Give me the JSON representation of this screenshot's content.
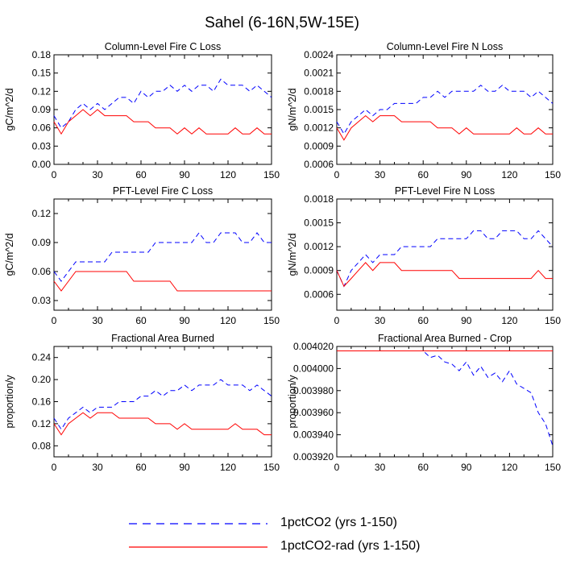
{
  "title": "Sahel (6-16N,5W-15E)",
  "legend": {
    "placement": "bottom",
    "entries": [
      {
        "label": "1pctCO2 (yrs 1-150)",
        "color": "#0000ff",
        "style": "dashed"
      },
      {
        "label": "1pctCO2-rad (yrs 1-150)",
        "color": "#ff0000",
        "style": "solid"
      }
    ]
  },
  "chart_data": [
    {
      "type": "line",
      "title": "Column-Level Fire C Loss",
      "ylabel": "gC/m^2/d",
      "xlim": [
        0,
        150
      ],
      "ylim": [
        0.0,
        0.18
      ],
      "xticks": [
        0,
        30,
        60,
        90,
        120,
        150
      ],
      "yticks": [
        "0.00",
        "0.03",
        "0.06",
        "0.09",
        "0.12",
        "0.15",
        "0.18"
      ],
      "x": {
        "start": 0,
        "step": 5,
        "count": 31
      },
      "series": [
        {
          "name": "1pctCO2 (yrs 1-150)",
          "color": "#0000ff",
          "style": "dashed",
          "values": [
            0.08,
            0.06,
            0.07,
            0.09,
            0.1,
            0.09,
            0.1,
            0.09,
            0.1,
            0.11,
            0.11,
            0.1,
            0.12,
            0.11,
            0.12,
            0.12,
            0.13,
            0.12,
            0.13,
            0.12,
            0.13,
            0.13,
            0.12,
            0.14,
            0.13,
            0.13,
            0.13,
            0.12,
            0.13,
            0.12,
            0.11
          ]
        },
        {
          "name": "1pctCO2-rad (yrs 1-150)",
          "color": "#ff0000",
          "style": "solid",
          "values": [
            0.07,
            0.05,
            0.07,
            0.08,
            0.09,
            0.08,
            0.09,
            0.08,
            0.08,
            0.08,
            0.08,
            0.07,
            0.07,
            0.07,
            0.06,
            0.06,
            0.06,
            0.05,
            0.06,
            0.05,
            0.06,
            0.05,
            0.05,
            0.05,
            0.05,
            0.06,
            0.05,
            0.05,
            0.06,
            0.05,
            0.05
          ]
        }
      ]
    },
    {
      "type": "line",
      "title": "Column-Level Fire N Loss",
      "ylabel": "gN/m^2/d",
      "xlim": [
        0,
        150
      ],
      "ylim": [
        0.0006,
        0.0024
      ],
      "xticks": [
        0,
        30,
        60,
        90,
        120,
        150
      ],
      "yticks": [
        "0.0006",
        "0.0009",
        "0.0012",
        "0.0015",
        "0.0018",
        "0.0021",
        "0.0024"
      ],
      "x": {
        "start": 0,
        "step": 5,
        "count": 31
      },
      "series": [
        {
          "name": "1pctCO2 (yrs 1-150)",
          "color": "#0000ff",
          "style": "dashed",
          "values": [
            0.0013,
            0.0011,
            0.0013,
            0.0014,
            0.0015,
            0.0014,
            0.0015,
            0.0015,
            0.0016,
            0.0016,
            0.0016,
            0.0016,
            0.0017,
            0.0017,
            0.0018,
            0.0017,
            0.0018,
            0.0018,
            0.0018,
            0.0018,
            0.0019,
            0.0018,
            0.0018,
            0.0019,
            0.0018,
            0.0018,
            0.0018,
            0.0017,
            0.0018,
            0.0017,
            0.0016
          ]
        },
        {
          "name": "1pctCO2-rad (yrs 1-150)",
          "color": "#ff0000",
          "style": "solid",
          "values": [
            0.0012,
            0.001,
            0.0012,
            0.0013,
            0.0014,
            0.0013,
            0.0014,
            0.0014,
            0.0014,
            0.0013,
            0.0013,
            0.0013,
            0.0013,
            0.0013,
            0.0012,
            0.0012,
            0.0012,
            0.0011,
            0.0012,
            0.0011,
            0.0011,
            0.0011,
            0.0011,
            0.0011,
            0.0011,
            0.0012,
            0.0011,
            0.0011,
            0.0012,
            0.0011,
            0.0011
          ]
        }
      ]
    },
    {
      "type": "line",
      "title": "PFT-Level Fire C Loss",
      "ylabel": "gC/m^2/d",
      "xlim": [
        0,
        150
      ],
      "ylim": [
        0.02,
        0.135
      ],
      "xticks": [
        0,
        30,
        60,
        90,
        120,
        150
      ],
      "yticks": [
        "0.03",
        "0.06",
        "0.09",
        "0.12"
      ],
      "x": {
        "start": 0,
        "step": 5,
        "count": 31
      },
      "series": [
        {
          "name": "1pctCO2 (yrs 1-150)",
          "color": "#0000ff",
          "style": "dashed",
          "values": [
            0.06,
            0.05,
            0.06,
            0.07,
            0.07,
            0.07,
            0.07,
            0.07,
            0.08,
            0.08,
            0.08,
            0.08,
            0.08,
            0.08,
            0.09,
            0.09,
            0.09,
            0.09,
            0.09,
            0.09,
            0.1,
            0.09,
            0.09,
            0.1,
            0.1,
            0.1,
            0.09,
            0.09,
            0.1,
            0.09,
            0.09
          ]
        },
        {
          "name": "1pctCO2-rad (yrs 1-150)",
          "color": "#ff0000",
          "style": "solid",
          "values": [
            0.05,
            0.04,
            0.05,
            0.06,
            0.06,
            0.06,
            0.06,
            0.06,
            0.06,
            0.06,
            0.06,
            0.05,
            0.05,
            0.05,
            0.05,
            0.05,
            0.05,
            0.04,
            0.04,
            0.04,
            0.04,
            0.04,
            0.04,
            0.04,
            0.04,
            0.04,
            0.04,
            0.04,
            0.04,
            0.04,
            0.04
          ]
        }
      ]
    },
    {
      "type": "line",
      "title": "PFT-Level Fire N Loss",
      "ylabel": "gN/m^2/d",
      "xlim": [
        0,
        150
      ],
      "ylim": [
        0.0004,
        0.0018
      ],
      "xticks": [
        0,
        30,
        60,
        90,
        120,
        150
      ],
      "yticks": [
        "0.0006",
        "0.0009",
        "0.0012",
        "0.0015",
        "0.0018"
      ],
      "x": {
        "start": 0,
        "step": 5,
        "count": 31
      },
      "series": [
        {
          "name": "1pctCO2 (yrs 1-150)",
          "color": "#0000ff",
          "style": "dashed",
          "values": [
            0.0009,
            0.0007,
            0.0009,
            0.001,
            0.0011,
            0.001,
            0.0011,
            0.0011,
            0.0011,
            0.0012,
            0.0012,
            0.0012,
            0.0012,
            0.0012,
            0.0013,
            0.0013,
            0.0013,
            0.0013,
            0.0013,
            0.0014,
            0.0014,
            0.0013,
            0.0013,
            0.0014,
            0.0014,
            0.0014,
            0.0013,
            0.0013,
            0.0014,
            0.0013,
            0.0012
          ]
        },
        {
          "name": "1pctCO2-rad (yrs 1-150)",
          "color": "#ff0000",
          "style": "solid",
          "values": [
            0.0009,
            0.0007,
            0.0008,
            0.0009,
            0.001,
            0.0009,
            0.001,
            0.001,
            0.001,
            0.0009,
            0.0009,
            0.0009,
            0.0009,
            0.0009,
            0.0009,
            0.0009,
            0.0009,
            0.0008,
            0.0008,
            0.0008,
            0.0008,
            0.0008,
            0.0008,
            0.0008,
            0.0008,
            0.0008,
            0.0008,
            0.0008,
            0.0009,
            0.0008,
            0.0008
          ]
        }
      ]
    },
    {
      "type": "line",
      "title": "Fractional Area Burned",
      "ylabel": "proportion/y",
      "xlim": [
        0,
        150
      ],
      "ylim": [
        0.06,
        0.26
      ],
      "xticks": [
        0,
        30,
        60,
        90,
        120,
        150
      ],
      "yticks": [
        "0.08",
        "0.12",
        "0.16",
        "0.20",
        "0.24"
      ],
      "x": {
        "start": 0,
        "step": 5,
        "count": 31
      },
      "series": [
        {
          "name": "1pctCO2 (yrs 1-150)",
          "color": "#0000ff",
          "style": "dashed",
          "values": [
            0.13,
            0.11,
            0.13,
            0.14,
            0.15,
            0.14,
            0.15,
            0.15,
            0.15,
            0.16,
            0.16,
            0.16,
            0.17,
            0.17,
            0.18,
            0.17,
            0.18,
            0.18,
            0.19,
            0.18,
            0.19,
            0.19,
            0.19,
            0.2,
            0.19,
            0.19,
            0.19,
            0.18,
            0.19,
            0.18,
            0.17
          ]
        },
        {
          "name": "1pctCO2-rad (yrs 1-150)",
          "color": "#ff0000",
          "style": "solid",
          "values": [
            0.12,
            0.1,
            0.12,
            0.13,
            0.14,
            0.13,
            0.14,
            0.14,
            0.14,
            0.13,
            0.13,
            0.13,
            0.13,
            0.13,
            0.12,
            0.12,
            0.12,
            0.11,
            0.12,
            0.11,
            0.11,
            0.11,
            0.11,
            0.11,
            0.11,
            0.12,
            0.11,
            0.11,
            0.11,
            0.1,
            0.1
          ]
        }
      ]
    },
    {
      "type": "line",
      "title": "Fractional Area Burned - Crop",
      "ylabel": "proportion/y",
      "xlim": [
        0,
        150
      ],
      "ylim": [
        0.00392,
        0.00402
      ],
      "xticks": [
        0,
        30,
        60,
        90,
        120,
        150
      ],
      "yticks": [
        "0.003920",
        "0.003940",
        "0.003960",
        "0.003980",
        "0.004000",
        "0.004020"
      ],
      "x": {
        "start": 0,
        "step": 5,
        "count": 31
      },
      "series": [
        {
          "name": "1pctCO2 (yrs 1-150)",
          "color": "#0000ff",
          "style": "dashed",
          "values": [
            0.004016,
            0.004016,
            0.004016,
            0.004016,
            0.004016,
            0.004016,
            0.004016,
            0.004016,
            0.004016,
            0.004016,
            0.004016,
            0.004016,
            0.004016,
            0.00401,
            0.004012,
            0.004006,
            0.004004,
            0.003998,
            0.004006,
            0.003994,
            0.004002,
            0.003992,
            0.003996,
            0.003988,
            0.003998,
            0.003986,
            0.003982,
            0.003978,
            0.00396,
            0.00395,
            0.00393
          ]
        },
        {
          "name": "1pctCO2-rad (yrs 1-150)",
          "color": "#ff0000",
          "style": "solid",
          "values": [
            0.004016,
            0.004016,
            0.004016,
            0.004016,
            0.004016,
            0.004016,
            0.004016,
            0.004016,
            0.004016,
            0.004016,
            0.004016,
            0.004016,
            0.004016,
            0.004016,
            0.004016,
            0.004016,
            0.004016,
            0.004016,
            0.004016,
            0.004016,
            0.004016,
            0.004016,
            0.004016,
            0.004016,
            0.004016,
            0.004016,
            0.004016,
            0.004016,
            0.004016,
            0.004016,
            0.004016
          ]
        }
      ]
    }
  ]
}
